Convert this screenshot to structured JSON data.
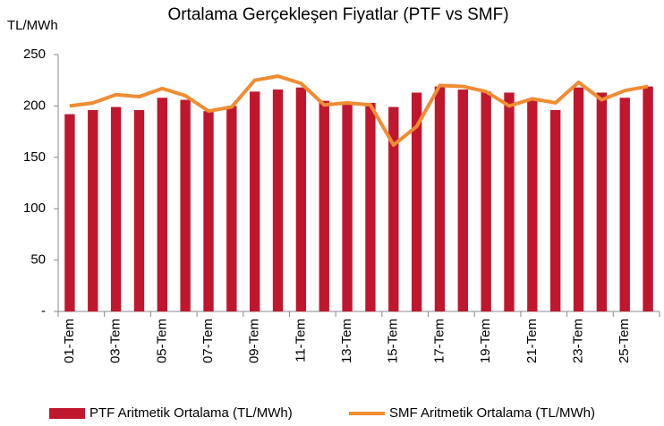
{
  "chart_data": {
    "type": "bar_line",
    "title": "Ortalama Gerçekleşen Fiyatlar (PTF vs SMF)",
    "y_label": "TL/MWh",
    "categories": [
      "01-Tem",
      null,
      "03-Tem",
      null,
      "05-Tem",
      null,
      "07-Tem",
      null,
      "09-Tem",
      null,
      "11-Tem",
      null,
      "13-Tem",
      null,
      "15-Tem",
      null,
      "17-Tem",
      null,
      "19-Tem",
      null,
      "21-Tem",
      null,
      "23-Tem",
      null,
      "25-Tem",
      null
    ],
    "series": [
      {
        "name": "PTF Aritmetik Ortalama (TL/MWh)",
        "type": "bar",
        "color": "#c0172e",
        "values": [
          192,
          196,
          199,
          196,
          208,
          206,
          195,
          200,
          214,
          216,
          218,
          205,
          202,
          203,
          199,
          213,
          219,
          216,
          214,
          213,
          206,
          196,
          218,
          213,
          208,
          219
        ]
      },
      {
        "name": "SMF Aritmetik Ortalama (TL/MWh)",
        "type": "line",
        "color": "#f08c32",
        "values": [
          200,
          203,
          211,
          209,
          217,
          210,
          195,
          199,
          225,
          229,
          222,
          201,
          203,
          201,
          162,
          180,
          220,
          219,
          214,
          200,
          207,
          203,
          223,
          206,
          215,
          219
        ]
      }
    ],
    "ylim": [
      0,
      250
    ],
    "yticks": [
      {
        "value": 0,
        "label": "-"
      },
      50,
      100,
      150,
      200,
      250
    ]
  }
}
